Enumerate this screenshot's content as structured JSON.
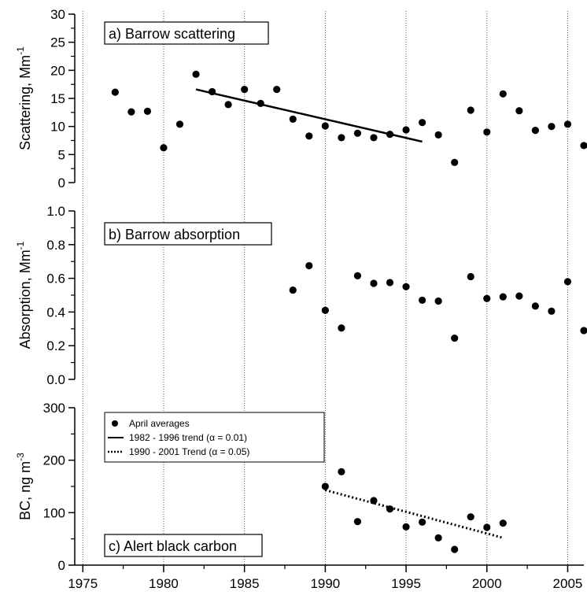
{
  "chart_data": [
    {
      "panel": "a",
      "type": "scatter",
      "label": "a) Barrow scattering",
      "ylabel": "Scattering, Mm",
      "ylabel_sup": "-1",
      "ylim": [
        0,
        30
      ],
      "yticks": [
        "0",
        "5",
        "10",
        "15",
        "20",
        "25",
        "30"
      ],
      "x": [
        1977,
        1978,
        1979,
        1980,
        1981,
        1982,
        1983,
        1984,
        1985,
        1986,
        1987,
        1988,
        1989,
        1990,
        1991,
        1992,
        1993,
        1994,
        1995,
        1996,
        1997,
        1998,
        1999,
        2000,
        2001,
        2002,
        2003,
        2004,
        2005,
        2006
      ],
      "y": [
        16.1,
        12.6,
        12.7,
        6.2,
        10.4,
        19.3,
        16.2,
        13.9,
        16.6,
        14.1,
        16.6,
        11.3,
        8.3,
        10.1,
        8.0,
        8.8,
        8.0,
        8.6,
        9.4,
        10.7,
        8.5,
        3.6,
        12.9,
        9.0,
        15.8,
        12.8,
        9.3,
        10.0,
        10.4,
        6.6
      ],
      "trend": {
        "x": [
          1982,
          1996
        ],
        "y": [
          16.6,
          7.3
        ],
        "style": "solid"
      }
    },
    {
      "panel": "b",
      "type": "scatter",
      "label": "b) Barrow absorption",
      "ylabel": "Absorption, Mm",
      "ylabel_sup": "-1",
      "ylim": [
        0,
        1.0
      ],
      "yticks": [
        "0.0",
        "0.2",
        "0.4",
        "0.6",
        "0.8",
        "1.0"
      ],
      "x": [
        1988,
        1989,
        1990,
        1991,
        1992,
        1993,
        1994,
        1995,
        1996,
        1997,
        1998,
        1999,
        2000,
        2001,
        2002,
        2003,
        2004,
        2005,
        2006
      ],
      "y": [
        0.53,
        0.675,
        0.41,
        0.305,
        0.615,
        0.57,
        0.575,
        0.55,
        0.47,
        0.465,
        0.245,
        0.61,
        0.48,
        0.49,
        0.495,
        0.435,
        0.405,
        0.58,
        0.29
      ]
    },
    {
      "panel": "c",
      "type": "scatter",
      "label": "c) Alert black carbon",
      "ylabel": "BC, ng m",
      "ylabel_sup": "-3",
      "ylim": [
        0,
        300
      ],
      "yticks": [
        "0",
        "100",
        "200",
        "300"
      ],
      "x": [
        1990,
        1991,
        1992,
        1993,
        1994,
        1995,
        1996,
        1997,
        1998,
        1999,
        2000,
        2001
      ],
      "y": [
        150,
        178,
        83,
        123,
        107,
        73,
        82,
        52,
        30,
        92,
        72,
        80
      ],
      "trend": {
        "x": [
          1990,
          2001
        ],
        "y": [
          143,
          52
        ],
        "style": "dotted"
      }
    }
  ],
  "x_axis": {
    "xlim": [
      1974.5,
      2006
    ],
    "ticks": [
      1975,
      1980,
      1985,
      1990,
      1995,
      2000,
      2005
    ],
    "tick_labels": [
      "1975",
      "1980",
      "1985",
      "1990",
      "1995",
      "2000",
      "2005"
    ],
    "vertical_gridlines": "dotted"
  },
  "legend": {
    "placement": "top-left of panel c",
    "entries": [
      {
        "marker": "dot",
        "label": "April averages"
      },
      {
        "marker": "solid-line",
        "label": "1982 - 1996 trend (α = 0.01)"
      },
      {
        "marker": "dotted-line",
        "label": "1990 - 2001 Trend (α = 0.05)"
      }
    ]
  },
  "colors": {
    "ink": "#000000",
    "background": "#ffffff",
    "grid": "#555555"
  }
}
